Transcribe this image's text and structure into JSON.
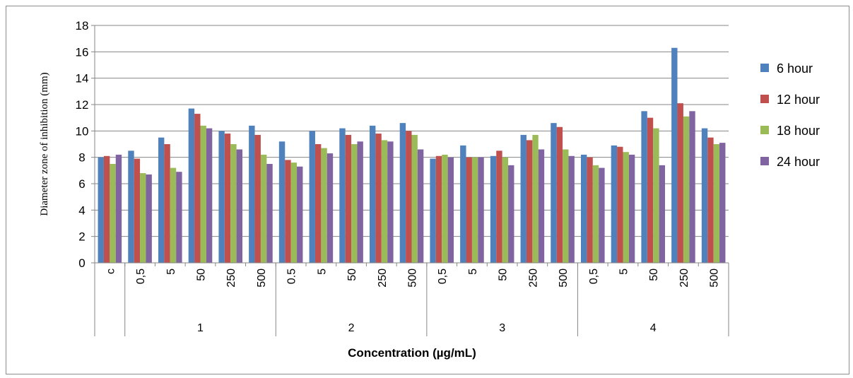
{
  "chart_data": {
    "type": "bar",
    "title": "",
    "xlabel": "Concentration (µg/mL)",
    "ylabel": "Diameter zone of inhibition (mm)",
    "ylim": [
      0,
      18
    ],
    "yticks": [
      0,
      2,
      4,
      6,
      8,
      10,
      12,
      14,
      16,
      18
    ],
    "grid": true,
    "legend_position": "right",
    "categories": [
      "c",
      "0,5",
      "5",
      "50",
      "250",
      "500",
      "0.5",
      "5",
      "50",
      "250",
      "500",
      "0,5",
      "5",
      "50",
      "250",
      "500",
      "0,5",
      "5",
      "50",
      "250",
      "500"
    ],
    "groups": [
      {
        "label": "",
        "start": 0,
        "count": 1
      },
      {
        "label": "1",
        "start": 1,
        "count": 5
      },
      {
        "label": "2",
        "start": 6,
        "count": 5
      },
      {
        "label": "3",
        "start": 11,
        "count": 5
      },
      {
        "label": "4",
        "start": 16,
        "count": 5
      }
    ],
    "series": [
      {
        "name": "6 hour",
        "color": "#4F81BD",
        "values": [
          8.0,
          8.5,
          9.5,
          11.7,
          10.0,
          10.4,
          9.2,
          10.0,
          10.2,
          10.4,
          10.6,
          7.9,
          8.9,
          8.1,
          9.7,
          10.6,
          8.2,
          8.9,
          11.5,
          16.3,
          10.2
        ]
      },
      {
        "name": "12 hour",
        "color": "#C0504D",
        "values": [
          8.1,
          7.9,
          9.0,
          11.3,
          9.8,
          9.7,
          7.8,
          9.0,
          9.7,
          9.8,
          10.0,
          8.1,
          8.0,
          8.5,
          9.3,
          10.3,
          8.0,
          8.8,
          11.0,
          12.1,
          9.5
        ]
      },
      {
        "name": "18 hour",
        "color": "#9BBB59",
        "values": [
          7.5,
          6.8,
          7.2,
          10.4,
          9.0,
          8.2,
          7.6,
          8.7,
          9.0,
          9.3,
          9.7,
          8.2,
          8.0,
          8.0,
          9.7,
          8.6,
          7.4,
          8.4,
          10.2,
          11.1,
          9.0
        ]
      },
      {
        "name": "24 hour",
        "color": "#8064A2",
        "values": [
          8.2,
          6.7,
          6.9,
          10.2,
          8.6,
          7.5,
          7.3,
          8.3,
          9.2,
          9.2,
          8.6,
          8.0,
          8.0,
          7.4,
          8.6,
          8.1,
          7.2,
          8.2,
          7.4,
          11.5,
          9.1
        ]
      }
    ]
  }
}
